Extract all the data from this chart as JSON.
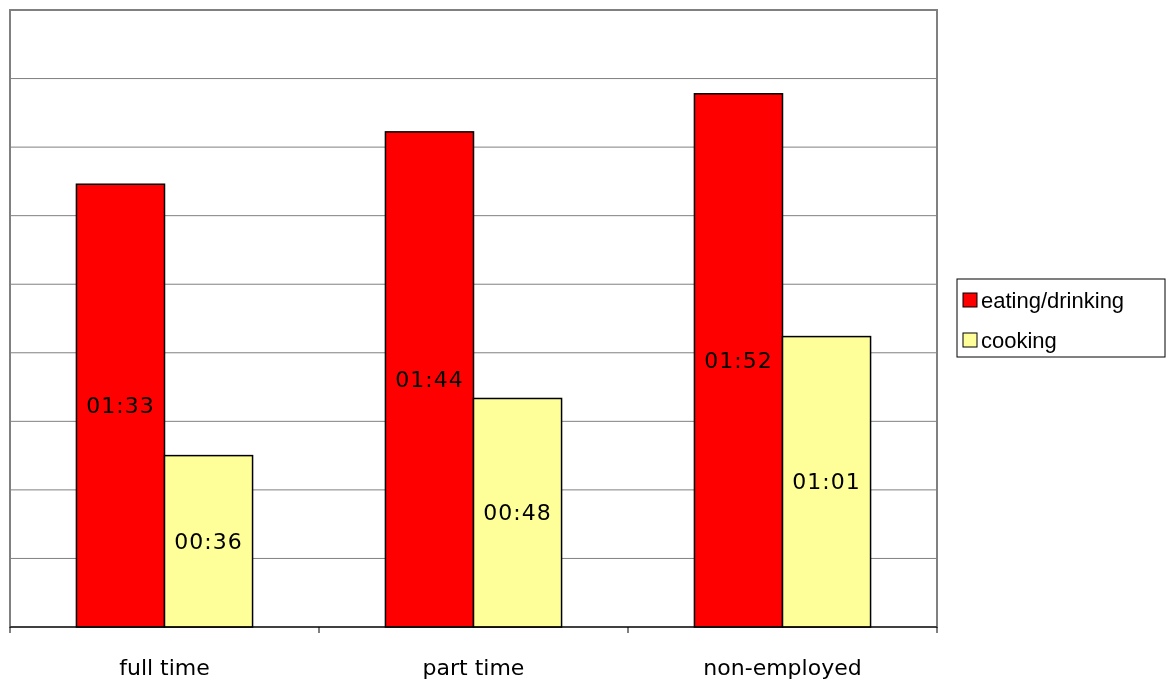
{
  "chart_data": {
    "type": "bar",
    "categories": [
      "full time",
      "part time",
      "non-employed"
    ],
    "series": [
      {
        "name": "eating/drinking",
        "color": "#ff0000",
        "values": [
          93,
          104,
          112
        ],
        "value_labels": [
          "01:33",
          "01:44",
          "01:52"
        ]
      },
      {
        "name": "cooking",
        "color": "#ffff99",
        "values": [
          36,
          48,
          61
        ],
        "value_labels": [
          "00:36",
          "00:48",
          "01:01"
        ]
      }
    ],
    "ylim": [
      0,
      129.6
    ],
    "yticks": [
      {
        "value": 0,
        "label": null
      },
      {
        "value": 14.4,
        "label": null
      },
      {
        "value": 28.8,
        "label": null
      },
      {
        "value": 43.2,
        "label": null
      },
      {
        "value": 57.6,
        "label": null
      },
      {
        "value": 72,
        "label": null
      },
      {
        "value": 86.4,
        "label": null
      },
      {
        "value": 100.8,
        "label": null
      },
      {
        "value": 115.2,
        "label": null
      },
      {
        "value": 129.6,
        "label": null
      }
    ],
    "tick_labels": "x",
    "grid": "y",
    "legend": "right"
  }
}
